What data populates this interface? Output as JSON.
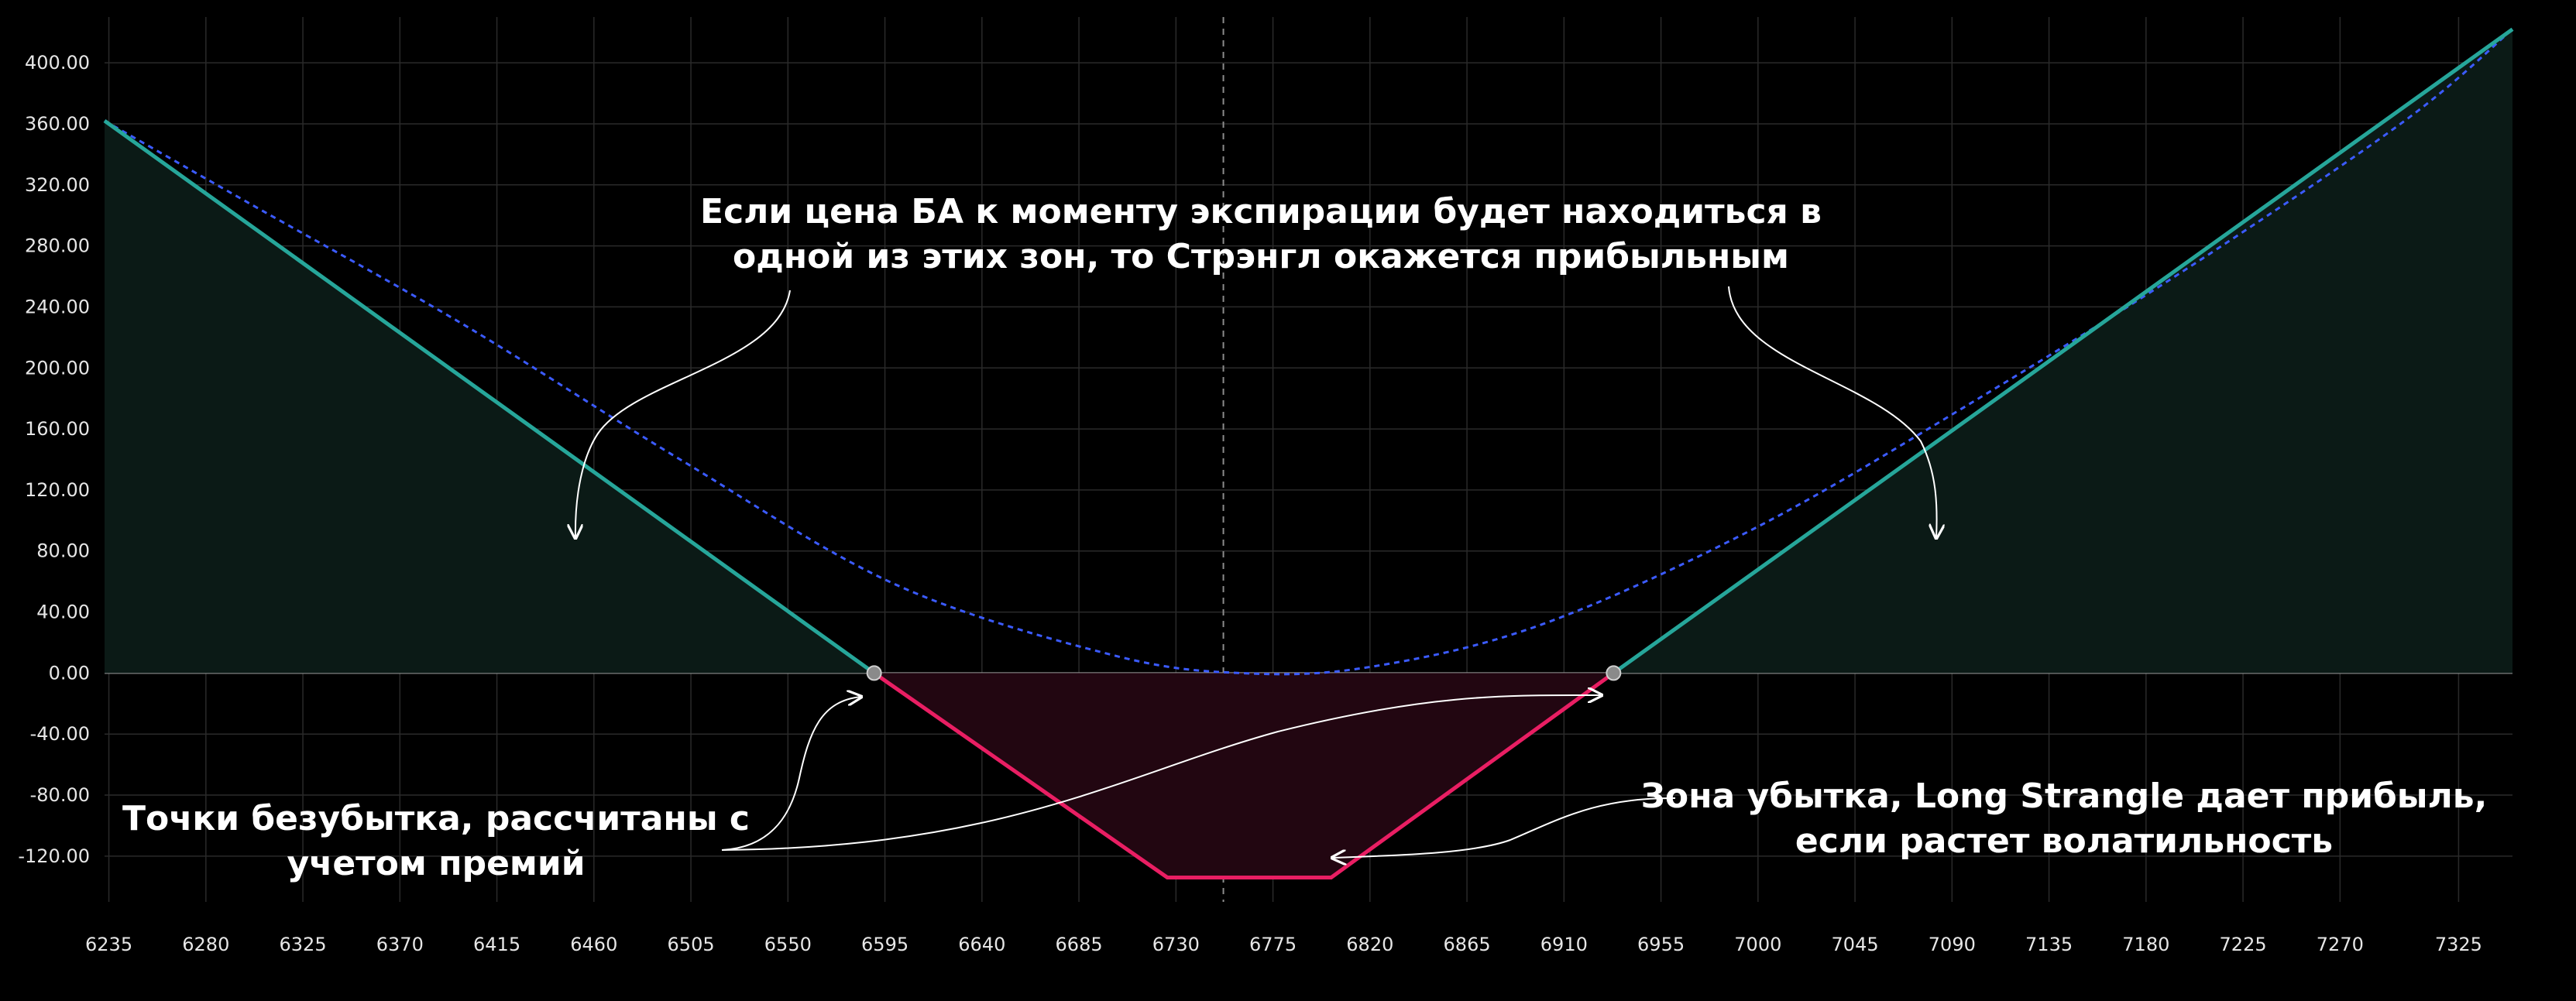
{
  "chart_data": {
    "type": "line",
    "title": "",
    "xlabel": "",
    "ylabel": "",
    "xlim": [
      6233,
      7350
    ],
    "ylim": [
      -150,
      430
    ],
    "grid": true,
    "x_ticks": [
      6235,
      6280,
      6325,
      6370,
      6415,
      6460,
      6505,
      6550,
      6595,
      6640,
      6685,
      6730,
      6775,
      6820,
      6865,
      6910,
      6955,
      7000,
      7045,
      7090,
      7135,
      7180,
      7225,
      7270,
      7325
    ],
    "x_tick_labels": [
      "6235",
      "6280",
      "6325",
      "6370",
      "6415",
      "6460",
      "6505",
      "6550",
      "6595",
      "6640",
      "6685",
      "6730",
      "6775",
      "6820",
      "6865",
      "6910",
      "6955",
      "7000",
      "7045",
      "7090",
      "7135",
      "7180",
      "7225",
      "7270",
      "7325"
    ],
    "y_ticks": [
      400,
      360,
      320,
      280,
      240,
      200,
      160,
      120,
      80,
      40,
      0,
      -40,
      -80,
      -120
    ],
    "y_tick_labels": [
      "400.00",
      "360.00",
      "320.00",
      "280.00",
      "240.00",
      "200.00",
      "160.00",
      "120.00",
      "80.00",
      "40.00",
      "0.00",
      "-40.00",
      "-80.00",
      "-120.00"
    ],
    "current_price": 6752,
    "series": [
      {
        "kind": "payoff_at_expiration",
        "points": [
          [
            6233,
            362
          ],
          [
            6590,
            0
          ],
          [
            6726,
            -134
          ],
          [
            6802,
            -134
          ],
          [
            6933,
            0
          ],
          [
            7350,
            422
          ]
        ]
      },
      {
        "kind": "payoff_today",
        "points": [
          [
            6233,
            362
          ],
          [
            6300,
            308
          ],
          [
            6400,
            228
          ],
          [
            6500,
            140
          ],
          [
            6600,
            58
          ],
          [
            6700,
            12
          ],
          [
            6760,
            0
          ],
          [
            6820,
            4
          ],
          [
            6900,
            32
          ],
          [
            7000,
            96
          ],
          [
            7100,
            178
          ],
          [
            7200,
            266
          ],
          [
            7300,
            362
          ],
          [
            7350,
            422
          ]
        ]
      }
    ],
    "breakeven_points": [
      [
        6590,
        0
      ],
      [
        6933,
        0
      ]
    ],
    "colors": {
      "profit_line": "#26a69a",
      "loss_line": "#e91e63",
      "today_curve": "#3b5bff",
      "profit_fill": "#0b1a16",
      "loss_fill": "#220611",
      "breakeven_marker": "#8a8a8a",
      "grid": "#2a2a2a"
    },
    "annotations": [
      {
        "id": "profit-zones",
        "lines": [
          "Если цена БА к моменту экспирации будет находиться в",
          "одной из этих зон, то Стрэнгл окажется прибыльным"
        ]
      },
      {
        "id": "breakeven",
        "lines": [
          "Точки безубытка, рассчитаны с",
          "учетом премий"
        ]
      },
      {
        "id": "loss-zone",
        "lines": [
          "Зона убытка, Long Strangle дает прибыль,",
          "если растет волатильность"
        ]
      }
    ]
  }
}
